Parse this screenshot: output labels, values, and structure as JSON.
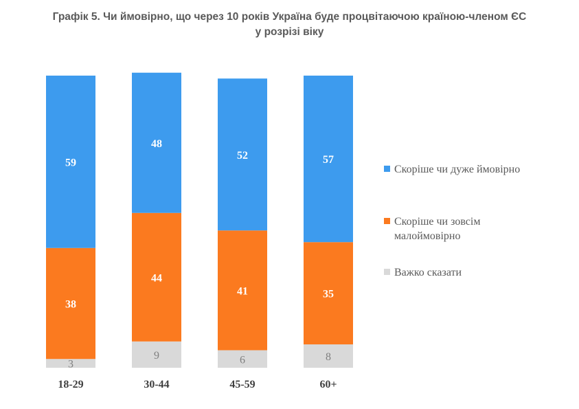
{
  "chart_data": {
    "type": "bar",
    "stacked": true,
    "percent": true,
    "title_line1": "Графік 5. Чи ймовірно, що через 10 років Україна буде процвітаючою країною-членом ЄС",
    "title_line2": "у розрізі віку",
    "categories": [
      "18-29",
      "30-44",
      "45-59",
      "60+"
    ],
    "series": [
      {
        "name": "Скоріше чи дуже ймовірно",
        "values": [
          59,
          48,
          52,
          57
        ],
        "color": "#3d9bee",
        "label_color": "#ffffff"
      },
      {
        "name": "Скоріше чи зовсім малоймовірно",
        "values": [
          38,
          44,
          41,
          35
        ],
        "color": "#fb7a1f",
        "label_color": "#ffffff"
      },
      {
        "name": "Важко сказати",
        "values": [
          3,
          9,
          6,
          8
        ],
        "color": "#d9d9d9",
        "label_color": "#7f7f7f"
      }
    ],
    "ylim": [
      0,
      100
    ],
    "grid": false,
    "legend_position": "right"
  },
  "legend": {
    "items": [
      {
        "label": "Скоріше чи дуже ймовірно"
      },
      {
        "label": "Скоріше чи зовсім малоймовірно"
      },
      {
        "label": "Важко сказати"
      }
    ]
  }
}
